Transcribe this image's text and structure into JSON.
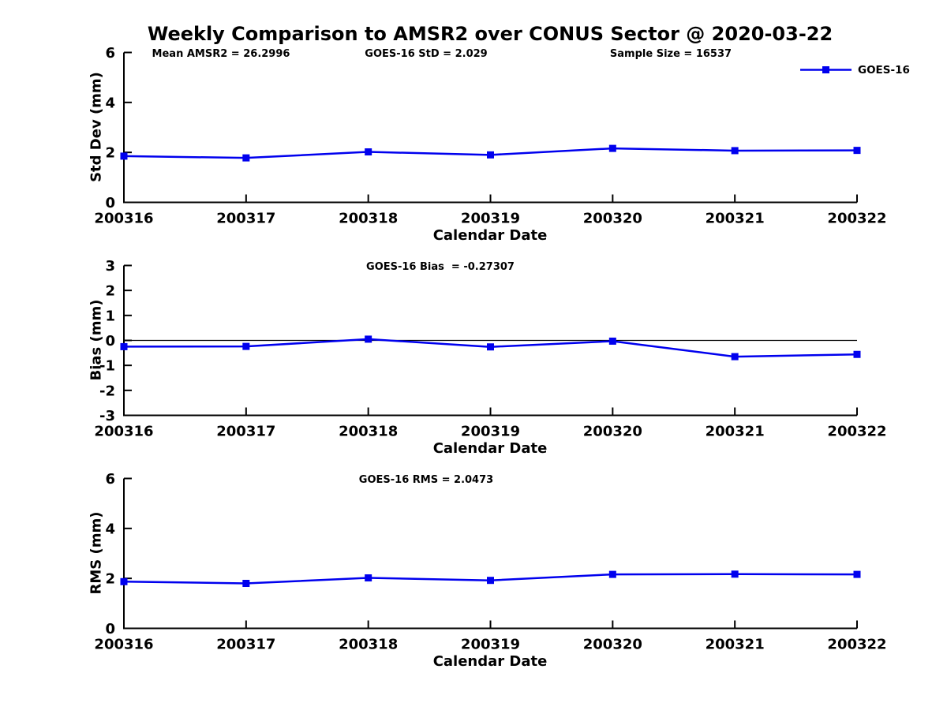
{
  "title": "Weekly Comparison to AMSR2 over CONUS Sector @ 2020-03-22",
  "legend": {
    "label": "GOES-16"
  },
  "colors": {
    "series": "#0000ee",
    "axis": "#000000",
    "text": "#000000",
    "background": "#ffffff"
  },
  "chart_data": [
    {
      "type": "line",
      "series_name": "GOES-16",
      "ylabel": "Std Dev (mm)",
      "xlabel": "Calendar Date",
      "categories": [
        "200316",
        "200317",
        "200318",
        "200319",
        "200320",
        "200321",
        "200322"
      ],
      "values": [
        1.85,
        1.78,
        2.02,
        1.9,
        2.16,
        2.07,
        2.08
      ],
      "ylim": [
        0,
        6
      ],
      "yticks": [
        0,
        2,
        4,
        6
      ],
      "zero_line": false,
      "grid": false,
      "annotations": [
        {
          "text": "Mean AMSR2 = 26.2996"
        },
        {
          "text": "GOES-16 StD = 2.029"
        },
        {
          "text": "Sample Size = 16537"
        }
      ]
    },
    {
      "type": "line",
      "series_name": "GOES-16",
      "ylabel": "Bias (mm)",
      "xlabel": "Calendar Date",
      "categories": [
        "200316",
        "200317",
        "200318",
        "200319",
        "200320",
        "200321",
        "200322"
      ],
      "values": [
        -0.25,
        -0.24,
        0.05,
        -0.26,
        -0.03,
        -0.65,
        -0.56
      ],
      "ylim": [
        -3,
        3
      ],
      "yticks": [
        -3,
        -2,
        -1,
        0,
        1,
        2,
        3
      ],
      "zero_line": true,
      "grid": false,
      "annotations": [
        {
          "text": "GOES-16 Bias  = -0.27307"
        }
      ]
    },
    {
      "type": "line",
      "series_name": "GOES-16",
      "ylabel": "RMS (mm)",
      "xlabel": "Calendar Date",
      "categories": [
        "200316",
        "200317",
        "200318",
        "200319",
        "200320",
        "200321",
        "200322"
      ],
      "values": [
        1.87,
        1.8,
        2.02,
        1.92,
        2.16,
        2.17,
        2.16
      ],
      "ylim": [
        0,
        6
      ],
      "yticks": [
        0,
        2,
        4,
        6
      ],
      "zero_line": false,
      "grid": false,
      "annotations": [
        {
          "text": "GOES-16 RMS = 2.0473"
        }
      ]
    }
  ]
}
